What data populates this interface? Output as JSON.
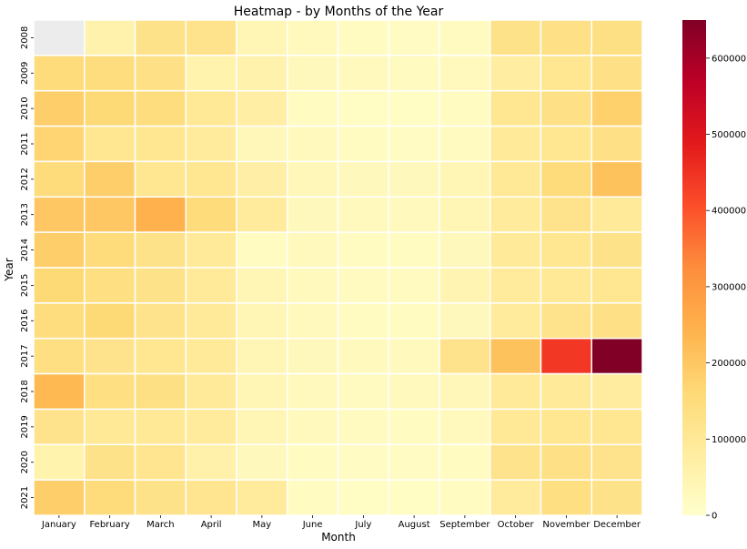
{
  "chart_data": {
    "type": "heatmap",
    "title": "Heatmap - by Months of the Year",
    "xlabel": "Month",
    "ylabel": "Year",
    "x_categories": [
      "January",
      "February",
      "March",
      "April",
      "May",
      "June",
      "July",
      "August",
      "September",
      "October",
      "November",
      "December"
    ],
    "y_categories": [
      "2008",
      "2009",
      "2010",
      "2011",
      "2012",
      "2013",
      "2014",
      "2015",
      "2016",
      "2017",
      "2018",
      "2019",
      "2020",
      "2021"
    ],
    "values": [
      [
        null,
        60000,
        125000,
        120000,
        40000,
        25000,
        20000,
        18000,
        22000,
        125000,
        130000,
        135000
      ],
      [
        150000,
        145000,
        130000,
        55000,
        60000,
        30000,
        25000,
        22000,
        25000,
        80000,
        110000,
        130000
      ],
      [
        185000,
        160000,
        145000,
        100000,
        75000,
        20000,
        15000,
        15000,
        20000,
        110000,
        130000,
        180000
      ],
      [
        170000,
        110000,
        110000,
        90000,
        35000,
        25000,
        20000,
        18000,
        22000,
        95000,
        110000,
        130000
      ],
      [
        150000,
        185000,
        110000,
        110000,
        70000,
        35000,
        30000,
        30000,
        45000,
        100000,
        150000,
        210000
      ],
      [
        200000,
        200000,
        245000,
        150000,
        90000,
        30000,
        25000,
        25000,
        45000,
        90000,
        120000,
        95000
      ],
      [
        185000,
        150000,
        125000,
        95000,
        20000,
        25000,
        20000,
        20000,
        30000,
        95000,
        110000,
        125000
      ],
      [
        160000,
        140000,
        125000,
        95000,
        40000,
        28000,
        22000,
        22000,
        50000,
        90000,
        100000,
        110000
      ],
      [
        145000,
        160000,
        120000,
        95000,
        40000,
        25000,
        20000,
        20000,
        30000,
        90000,
        120000,
        130000
      ],
      [
        140000,
        120000,
        110000,
        95000,
        45000,
        30000,
        25000,
        25000,
        120000,
        210000,
        440000,
        650000
      ],
      [
        230000,
        140000,
        135000,
        95000,
        40000,
        28000,
        22000,
        25000,
        35000,
        95000,
        95000,
        85000
      ],
      [
        120000,
        100000,
        100000,
        90000,
        40000,
        28000,
        22000,
        20000,
        25000,
        100000,
        110000,
        110000
      ],
      [
        55000,
        125000,
        115000,
        65000,
        30000,
        20000,
        18000,
        18000,
        20000,
        120000,
        130000,
        120000
      ],
      [
        185000,
        150000,
        125000,
        115000,
        90000,
        20000,
        15000,
        15000,
        20000,
        90000,
        140000,
        125000
      ]
    ],
    "colorscale": "YlOrRd",
    "vmin": 0,
    "vmax": 650000,
    "colorbar_ticks": [
      0,
      100000,
      200000,
      300000,
      400000,
      500000,
      600000
    ],
    "missing_color": "#ececec"
  }
}
